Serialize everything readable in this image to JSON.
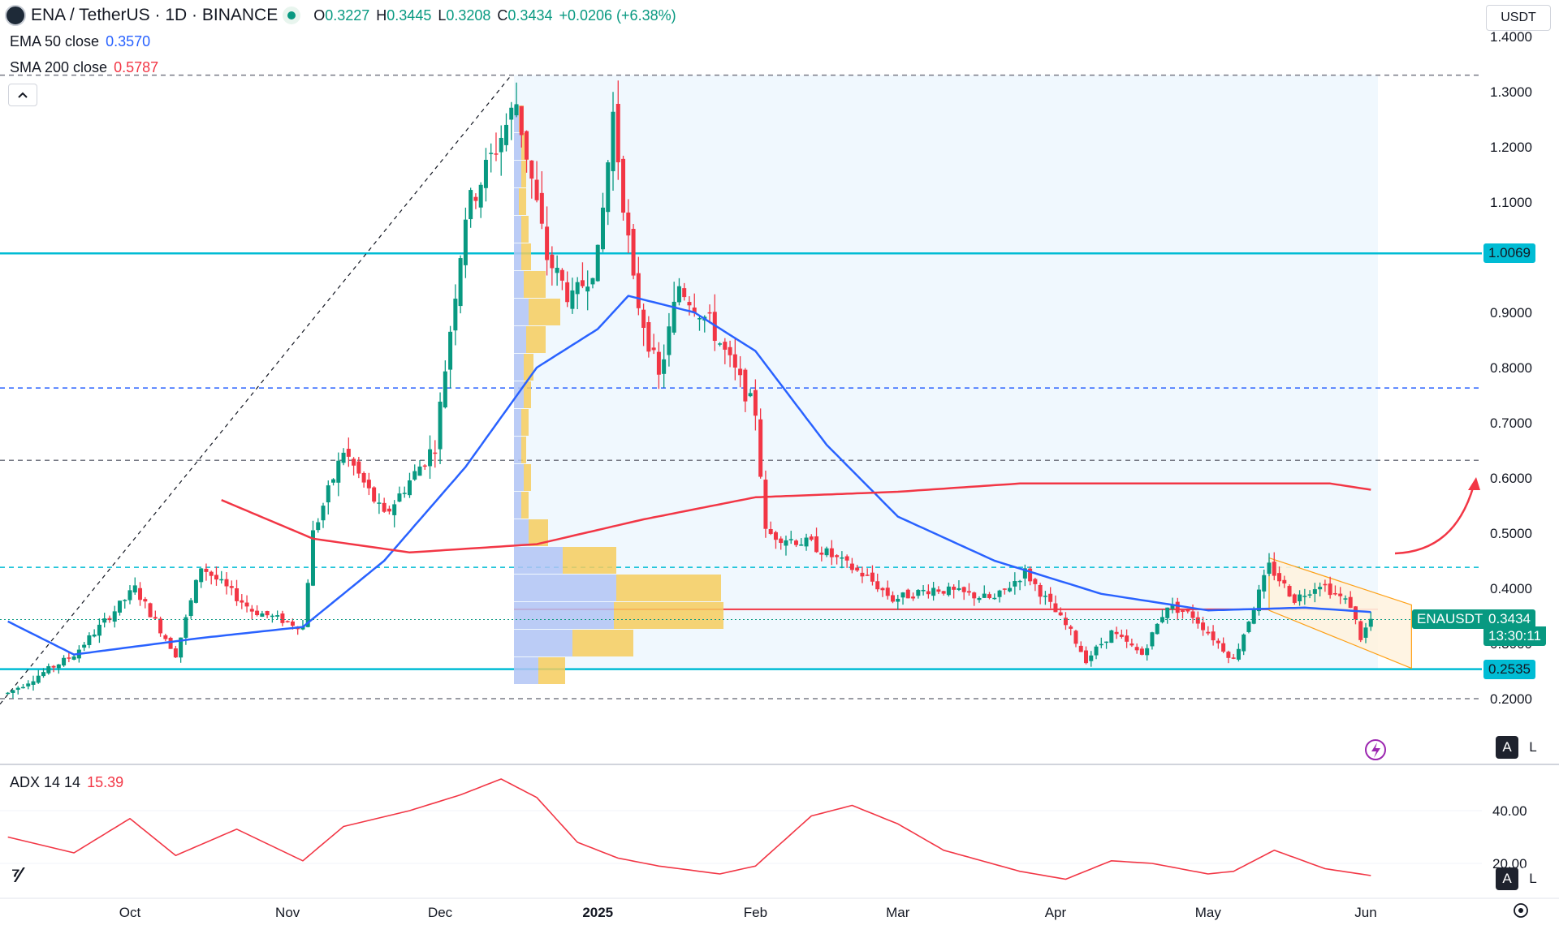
{
  "header": {
    "symbol_title": "ENA / TetherUS · 1D · BINANCE",
    "ohlc": [
      {
        "k": "O",
        "v": "0.3227"
      },
      {
        "k": "H",
        "v": "0.3445"
      },
      {
        "k": "L",
        "v": "0.3208"
      },
      {
        "k": "C",
        "v": "0.3434"
      }
    ],
    "change": "+0.0206 (+6.38%)"
  },
  "indicators": {
    "ema": {
      "label": "EMA 50 close",
      "value": "0.3570",
      "color": "#2962ff"
    },
    "sma": {
      "label": "SMA 200 close",
      "value": "0.5787",
      "color": "#f23645"
    },
    "adx": {
      "label": "ADX 14 14",
      "value": "15.39",
      "color": "#f23645"
    }
  },
  "currency_button": "USDT",
  "price_tags": {
    "symbol": "ENAUSDT",
    "last_price": "0.3434",
    "countdown": "13:30:11",
    "level_high": "1.0069",
    "level_low": "0.2535"
  },
  "axis_buttons": {
    "auto": "A",
    "log": "L"
  },
  "colors": {
    "up": "#089981",
    "down": "#f23645",
    "level": "#00bcd4",
    "ema": "#2962ff",
    "sma": "#f23645",
    "vp_up": "#b2c4f5",
    "vp_down": "#f6cc5d"
  },
  "chart_data": {
    "type": "candlestick",
    "title": "ENA / TetherUS · 1D · BINANCE",
    "y_axis": {
      "range": [
        0.13,
        1.43
      ],
      "ticks": [
        "1.4000",
        "1.3000",
        "1.2000",
        "1.1000",
        "0.9000",
        "0.8000",
        "0.7000",
        "0.6000",
        "0.5000",
        "0.4000",
        "0.3000",
        "0.2000"
      ]
    },
    "x_axis": {
      "ticks": [
        "Oct",
        "Nov",
        "Dec",
        "2025",
        "Feb",
        "Mar",
        "Apr",
        "May",
        "Jun"
      ]
    },
    "horizontal_levels": [
      {
        "price": 1.0069,
        "style": "solid",
        "color": "#00bcd4"
      },
      {
        "price": 0.2535,
        "style": "solid",
        "color": "#00bcd4"
      },
      {
        "price": 1.33,
        "style": "dashed",
        "color": "#787b86"
      },
      {
        "price": 0.763,
        "style": "dashed",
        "color": "#2962ff"
      },
      {
        "price": 0.632,
        "style": "dashed",
        "color": "#787b86"
      },
      {
        "price": 0.438,
        "style": "dashed",
        "color": "#00bcd4"
      },
      {
        "price": 0.2,
        "style": "dashed",
        "color": "#787b86"
      },
      {
        "price": 0.362,
        "style": "solid",
        "color": "#f23645"
      }
    ],
    "price_anchors": [
      {
        "date": "2024-09-07",
        "price": 0.21
      },
      {
        "date": "2024-09-20",
        "price": 0.28
      },
      {
        "date": "2024-10-02",
        "price": 0.4
      },
      {
        "date": "2024-10-10",
        "price": 0.28
      },
      {
        "date": "2024-10-15",
        "price": 0.44
      },
      {
        "date": "2024-10-25",
        "price": 0.36
      },
      {
        "date": "2024-11-04",
        "price": 0.33
      },
      {
        "date": "2024-11-06",
        "price": 0.5
      },
      {
        "date": "2024-11-12",
        "price": 0.65
      },
      {
        "date": "2024-11-20",
        "price": 0.53
      },
      {
        "date": "2024-11-30",
        "price": 0.66
      },
      {
        "date": "2024-12-06",
        "price": 1.08
      },
      {
        "date": "2024-12-16",
        "price": 1.28
      },
      {
        "date": "2024-12-22",
        "price": 1.0
      },
      {
        "date": "2024-12-27",
        "price": 0.92
      },
      {
        "date": "2025-01-01",
        "price": 1.0
      },
      {
        "date": "2025-01-04",
        "price": 1.26
      },
      {
        "date": "2025-01-08",
        "price": 0.95
      },
      {
        "date": "2025-01-13",
        "price": 0.78
      },
      {
        "date": "2025-01-17",
        "price": 0.95
      },
      {
        "date": "2025-01-23",
        "price": 0.88
      },
      {
        "date": "2025-02-01",
        "price": 0.72
      },
      {
        "date": "2025-02-03",
        "price": 0.5
      },
      {
        "date": "2025-02-12",
        "price": 0.48
      },
      {
        "date": "2025-02-23",
        "price": 0.42
      },
      {
        "date": "2025-02-28",
        "price": 0.38
      },
      {
        "date": "2025-03-08",
        "price": 0.4
      },
      {
        "date": "2025-03-20",
        "price": 0.38
      },
      {
        "date": "2025-03-26",
        "price": 0.43
      },
      {
        "date": "2025-04-04",
        "price": 0.32
      },
      {
        "date": "2025-04-07",
        "price": 0.27
      },
      {
        "date": "2025-04-12",
        "price": 0.32
      },
      {
        "date": "2025-04-18",
        "price": 0.28
      },
      {
        "date": "2025-04-23",
        "price": 0.37
      },
      {
        "date": "2025-04-28",
        "price": 0.35
      },
      {
        "date": "2025-05-06",
        "price": 0.27
      },
      {
        "date": "2025-05-13",
        "price": 0.44
      },
      {
        "date": "2025-05-18",
        "price": 0.38
      },
      {
        "date": "2025-05-23",
        "price": 0.41
      },
      {
        "date": "2025-05-29",
        "price": 0.37
      },
      {
        "date": "2025-05-31",
        "price": 0.31
      },
      {
        "date": "2025-06-02",
        "price": 0.3434
      }
    ],
    "ema50_anchors": [
      {
        "date": "2024-09-07",
        "price": 0.34
      },
      {
        "date": "2024-09-20",
        "price": 0.28
      },
      {
        "date": "2024-10-15",
        "price": 0.31
      },
      {
        "date": "2024-11-04",
        "price": 0.33
      },
      {
        "date": "2024-11-20",
        "price": 0.45
      },
      {
        "date": "2024-12-06",
        "price": 0.62
      },
      {
        "date": "2024-12-20",
        "price": 0.8
      },
      {
        "date": "2025-01-01",
        "price": 0.87
      },
      {
        "date": "2025-01-07",
        "price": 0.93
      },
      {
        "date": "2025-01-20",
        "price": 0.9
      },
      {
        "date": "2025-02-01",
        "price": 0.83
      },
      {
        "date": "2025-02-15",
        "price": 0.66
      },
      {
        "date": "2025-03-01",
        "price": 0.53
      },
      {
        "date": "2025-03-20",
        "price": 0.45
      },
      {
        "date": "2025-04-10",
        "price": 0.39
      },
      {
        "date": "2025-05-01",
        "price": 0.36
      },
      {
        "date": "2025-05-20",
        "price": 0.365
      },
      {
        "date": "2025-06-02",
        "price": 0.357
      }
    ],
    "sma200_anchors": [
      {
        "date": "2024-10-19",
        "price": 0.56
      },
      {
        "date": "2024-11-06",
        "price": 0.49
      },
      {
        "date": "2024-11-25",
        "price": 0.465
      },
      {
        "date": "2024-12-20",
        "price": 0.48
      },
      {
        "date": "2025-01-10",
        "price": 0.525
      },
      {
        "date": "2025-02-01",
        "price": 0.565
      },
      {
        "date": "2025-03-01",
        "price": 0.575
      },
      {
        "date": "2025-03-25",
        "price": 0.59
      },
      {
        "date": "2025-05-01",
        "price": 0.59
      },
      {
        "date": "2025-05-25",
        "price": 0.59
      },
      {
        "date": "2025-06-02",
        "price": 0.5787
      }
    ],
    "volume_profile_rows": [
      {
        "price": 1.25,
        "up": 0.02,
        "down": 0.02
      },
      {
        "price": 1.2,
        "up": 0.03,
        "down": 0.03
      },
      {
        "price": 1.15,
        "up": 0.03,
        "down": 0.02
      },
      {
        "price": 1.1,
        "up": 0.02,
        "down": 0.03
      },
      {
        "price": 1.05,
        "up": 0.03,
        "down": 0.03
      },
      {
        "price": 1.0,
        "up": 0.03,
        "down": 0.04
      },
      {
        "price": 0.95,
        "up": 0.04,
        "down": 0.09
      },
      {
        "price": 0.9,
        "up": 0.06,
        "down": 0.13
      },
      {
        "price": 0.85,
        "up": 0.05,
        "down": 0.08
      },
      {
        "price": 0.8,
        "up": 0.04,
        "down": 0.04
      },
      {
        "price": 0.75,
        "up": 0.04,
        "down": 0.03
      },
      {
        "price": 0.7,
        "up": 0.03,
        "down": 0.03
      },
      {
        "price": 0.65,
        "up": 0.03,
        "down": 0.02
      },
      {
        "price": 0.6,
        "up": 0.04,
        "down": 0.03
      },
      {
        "price": 0.55,
        "up": 0.03,
        "down": 0.03
      },
      {
        "price": 0.5,
        "up": 0.06,
        "down": 0.08
      },
      {
        "price": 0.45,
        "up": 0.2,
        "down": 0.22
      },
      {
        "price": 0.4,
        "up": 0.42,
        "down": 0.43
      },
      {
        "price": 0.35,
        "up": 0.41,
        "down": 0.45
      },
      {
        "price": 0.3,
        "up": 0.24,
        "down": 0.25
      },
      {
        "price": 0.25,
        "up": 0.1,
        "down": 0.11
      }
    ],
    "adx": {
      "y_ticks": [
        "40.00",
        "20.00"
      ],
      "range": [
        8,
        58
      ],
      "anchors": [
        {
          "date": "2024-09-07",
          "value": 30
        },
        {
          "date": "2024-09-20",
          "value": 24
        },
        {
          "date": "2024-10-01",
          "value": 37
        },
        {
          "date": "2024-10-10",
          "value": 23
        },
        {
          "date": "2024-10-22",
          "value": 33
        },
        {
          "date": "2024-11-04",
          "value": 21
        },
        {
          "date": "2024-11-12",
          "value": 34
        },
        {
          "date": "2024-11-25",
          "value": 40
        },
        {
          "date": "2024-12-05",
          "value": 46
        },
        {
          "date": "2024-12-13",
          "value": 52
        },
        {
          "date": "2024-12-20",
          "value": 45
        },
        {
          "date": "2024-12-28",
          "value": 28
        },
        {
          "date": "2025-01-05",
          "value": 22
        },
        {
          "date": "2025-01-13",
          "value": 19
        },
        {
          "date": "2025-01-25",
          "value": 16
        },
        {
          "date": "2025-02-01",
          "value": 19
        },
        {
          "date": "2025-02-12",
          "value": 38
        },
        {
          "date": "2025-02-20",
          "value": 42
        },
        {
          "date": "2025-03-01",
          "value": 35
        },
        {
          "date": "2025-03-10",
          "value": 25
        },
        {
          "date": "2025-03-25",
          "value": 17
        },
        {
          "date": "2025-04-03",
          "value": 14
        },
        {
          "date": "2025-04-12",
          "value": 21
        },
        {
          "date": "2025-04-20",
          "value": 20
        },
        {
          "date": "2025-05-01",
          "value": 16
        },
        {
          "date": "2025-05-06",
          "value": 17
        },
        {
          "date": "2025-05-14",
          "value": 25
        },
        {
          "date": "2025-05-24",
          "value": 18
        },
        {
          "date": "2025-06-02",
          "value": 15.39
        }
      ]
    }
  }
}
